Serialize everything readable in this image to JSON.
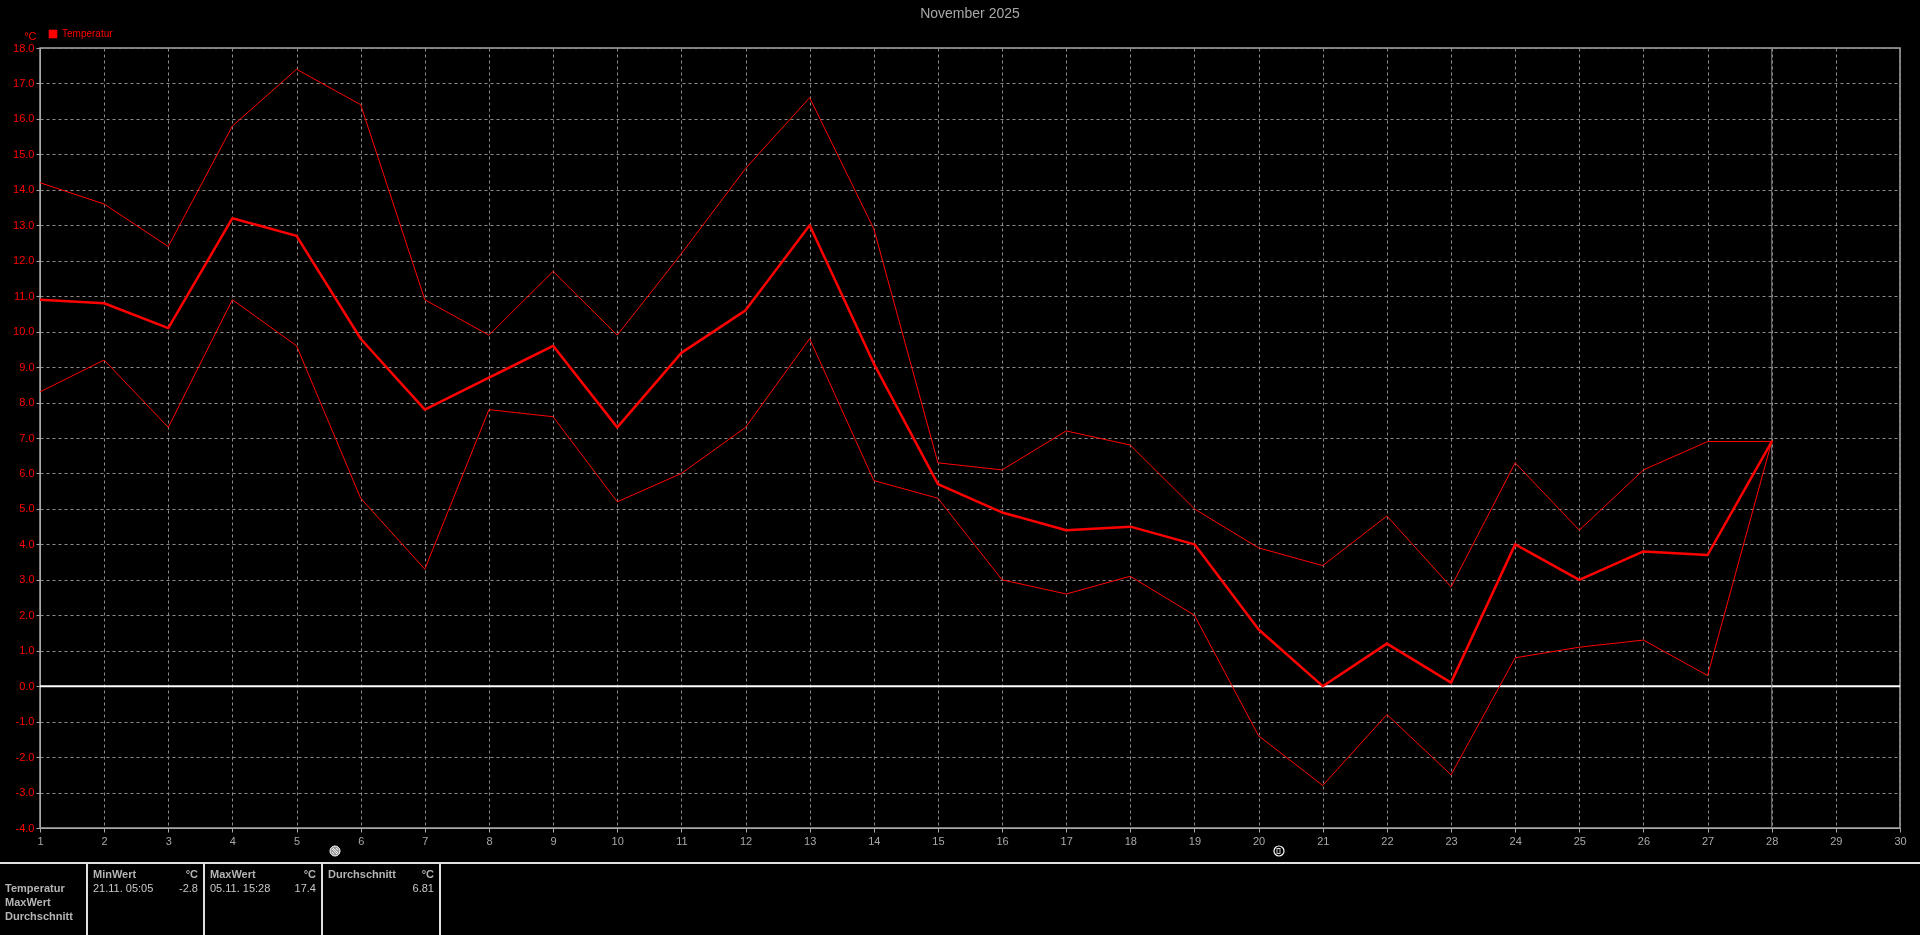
{
  "chart_data": {
    "type": "line",
    "title": "November 2025",
    "ylabel": "°C",
    "x": [
      1,
      2,
      3,
      4,
      5,
      6,
      7,
      8,
      9,
      10,
      11,
      12,
      13,
      14,
      15,
      16,
      17,
      18,
      19,
      20,
      21,
      22,
      23,
      24,
      25,
      26,
      27,
      28
    ],
    "xlim": [
      1,
      30
    ],
    "xticks": [
      1,
      2,
      3,
      4,
      5,
      6,
      7,
      8,
      9,
      10,
      11,
      12,
      13,
      14,
      15,
      16,
      17,
      18,
      19,
      20,
      21,
      22,
      23,
      24,
      25,
      26,
      27,
      28,
      29,
      30
    ],
    "ylim": [
      -4,
      18
    ],
    "yticks": [
      {
        "value": -4,
        "label": "-4.0"
      },
      {
        "value": -3,
        "label": "-3.0"
      },
      {
        "value": -2,
        "label": "-2.0"
      },
      {
        "value": -1,
        "label": "-1.0"
      },
      {
        "value": 0,
        "label": "0.0"
      },
      {
        "value": 1,
        "label": "1.0"
      },
      {
        "value": 2,
        "label": "2.0"
      },
      {
        "value": 3,
        "label": "3.0"
      },
      {
        "value": 4,
        "label": "4.0"
      },
      {
        "value": 5,
        "label": "5.0"
      },
      {
        "value": 6,
        "label": "6.0"
      },
      {
        "value": 7,
        "label": "7.0"
      },
      {
        "value": 8,
        "label": "8.0"
      },
      {
        "value": 9,
        "label": "9.0"
      },
      {
        "value": 10,
        "label": "10.0"
      },
      {
        "value": 11,
        "label": "11.0"
      },
      {
        "value": 12,
        "label": "12.0"
      },
      {
        "value": 13,
        "label": "13.0"
      },
      {
        "value": 14,
        "label": "14.0"
      },
      {
        "value": 15,
        "label": "15.0"
      },
      {
        "value": 16,
        "label": "16.0"
      },
      {
        "value": 17,
        "label": "17.0"
      },
      {
        "value": 18,
        "label": "18.0"
      }
    ],
    "grid": true,
    "legend": "top left",
    "series": [
      {
        "color": "#ff0000",
        "values": [
          14.2,
          13.6,
          12.4,
          15.8,
          17.4,
          16.4,
          10.9,
          9.9,
          11.7,
          9.9,
          12.2,
          14.6,
          16.6,
          12.9,
          6.3,
          6.1,
          7.2,
          6.8,
          5.0,
          3.9,
          3.4,
          4.8,
          2.8,
          6.3,
          4.4,
          6.1,
          6.9,
          6.9
        ]
      },
      {
        "name": "Temperatur",
        "color": "#ff0000",
        "values": [
          10.9,
          10.8,
          10.1,
          13.2,
          12.7,
          9.8,
          7.8,
          8.7,
          9.6,
          7.3,
          9.4,
          10.6,
          13.0,
          9.1,
          5.7,
          4.9,
          4.4,
          4.5,
          4.0,
          1.6,
          0.0,
          1.2,
          0.1,
          4.0,
          3.0,
          3.8,
          3.7,
          6.9
        ]
      },
      {
        "color": "#ff0000",
        "values": [
          8.3,
          9.2,
          7.3,
          10.9,
          9.6,
          5.3,
          3.3,
          7.8,
          7.6,
          5.2,
          6.0,
          7.3,
          9.8,
          5.8,
          5.3,
          3.0,
          2.6,
          3.1,
          2.0,
          -1.4,
          -2.8,
          -0.8,
          -2.5,
          0.8,
          1.1,
          1.3,
          0.3,
          6.9
        ]
      }
    ],
    "ref_lines": [
      {
        "axis": "y",
        "value": 0,
        "color": "#ffffff"
      },
      {
        "axis": "x",
        "value": 28,
        "color": "#808080"
      }
    ],
    "annotations": [
      "Temperatur",
      "MaxWert",
      "Durchschnitt",
      "MinWert",
      "°C",
      "21.11. 05:05",
      "-2.8",
      "MaxWert",
      "°C",
      "05.11. 15:28",
      "17.4",
      "Durchschnitt",
      "°C",
      "6.81"
    ]
  }
}
